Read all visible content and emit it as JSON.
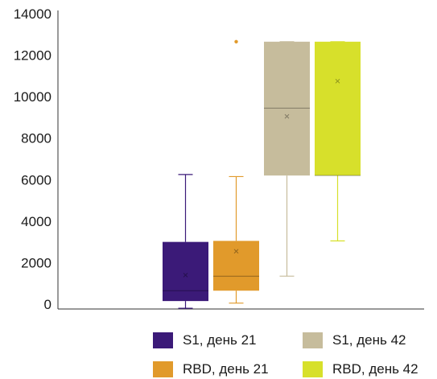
{
  "chart_data": {
    "type": "box",
    "ylim": [
      0,
      14000
    ],
    "yticks": [
      0,
      2000,
      4000,
      6000,
      8000,
      10000,
      12000,
      14000
    ],
    "grid": false,
    "legend_position": "bottom",
    "series": [
      {
        "name": "S1, день 21",
        "color": "#3b1a78",
        "whisker_low": -200,
        "q1": 150,
        "median": 650,
        "q3": 3000,
        "whisker_high": 6250,
        "mean": 1400,
        "outliers": []
      },
      {
        "name": "RBD, день 21",
        "color": "#e19a2b",
        "whisker_low": 50,
        "q1": 650,
        "median": 1350,
        "q3": 3050,
        "whisker_high": 6150,
        "mean": 2550,
        "outliers": [
          12650
        ]
      },
      {
        "name": "S1, день 42",
        "color": "#c6bc9c",
        "whisker_low": 1350,
        "q1": 6200,
        "median": 9450,
        "q3": 12650,
        "whisker_high": 12650,
        "mean": 9050,
        "outliers": []
      },
      {
        "name": "RBD, день 42",
        "color": "#d7e02b",
        "whisker_low": 3050,
        "q1": 6200,
        "median": 6200,
        "q3": 12650,
        "whisker_high": 12650,
        "mean": 10750,
        "outliers": []
      }
    ]
  }
}
